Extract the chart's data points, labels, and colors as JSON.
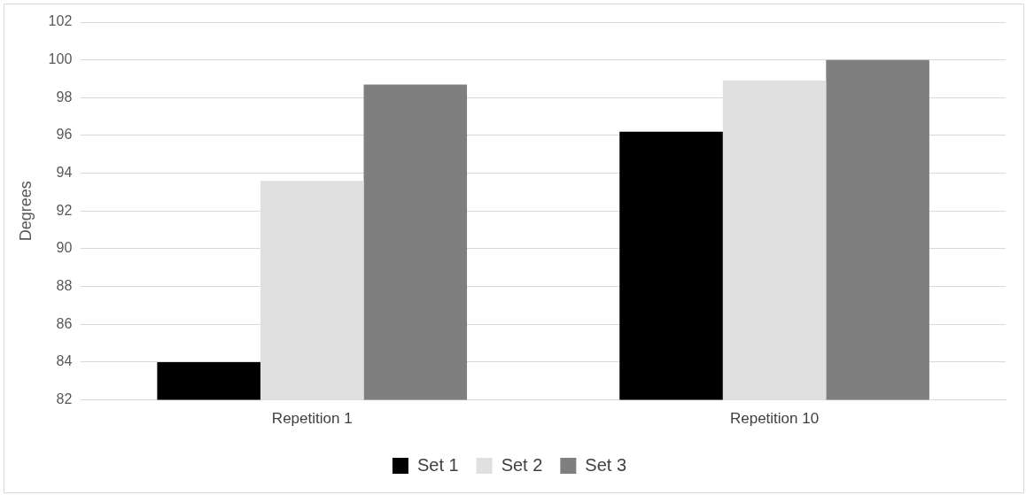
{
  "chart_data": {
    "type": "bar",
    "ylabel": "Degrees",
    "categories": [
      "Repetition 1",
      "Repetition 10"
    ],
    "series": [
      {
        "name": "Set 1",
        "color": "#000000",
        "values": [
          84.0,
          96.2
        ]
      },
      {
        "name": "Set 2",
        "color": "#e0e0e0",
        "values": [
          93.6,
          98.9
        ]
      },
      {
        "name": "Set 3",
        "color": "#7f7f7f",
        "values": [
          98.7,
          100.0
        ]
      }
    ],
    "ylim": [
      82,
      102
    ],
    "yticks": [
      82,
      84,
      86,
      88,
      90,
      92,
      94,
      96,
      98,
      100,
      102
    ],
    "grid": "y",
    "legend": "bottom"
  }
}
